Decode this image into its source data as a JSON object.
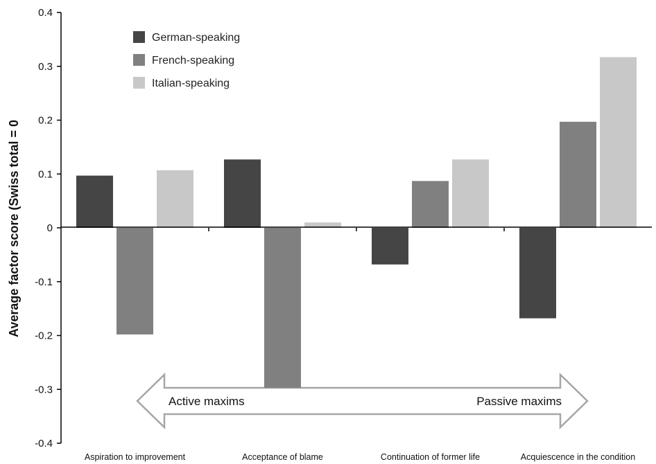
{
  "chart_data": {
    "type": "bar",
    "ylabel": "Average factor score (Swiss total = 0",
    "ylim": [
      -0.4,
      0.4
    ],
    "yticks": [
      {
        "value": -0.4,
        "label": "-0.4"
      },
      {
        "value": -0.3,
        "label": "-0.3"
      },
      {
        "value": -0.2,
        "label": "-0.2"
      },
      {
        "value": -0.1,
        "label": "-0.1"
      },
      {
        "value": 0,
        "label": "0"
      },
      {
        "value": 0.1,
        "label": "0.1"
      },
      {
        "value": 0.2,
        "label": "0.2"
      },
      {
        "value": 0.3,
        "label": "0.3"
      },
      {
        "value": 0.4,
        "label": "0.4"
      }
    ],
    "categories": [
      "Aspiration to improvement",
      "Acceptance of blame",
      "Continuation of former life",
      "Acquiescence in the condition"
    ],
    "series": [
      {
        "name": "German-speaking",
        "color": "#454545",
        "values": [
          0.097,
          0.127,
          -0.068,
          -0.168
        ]
      },
      {
        "name": "French-speaking",
        "color": "#808080",
        "values": [
          -0.198,
          -0.297,
          0.087,
          0.197
        ]
      },
      {
        "name": "Italian-speaking",
        "color": "#c8c8c8",
        "values": [
          0.107,
          0.01,
          0.127,
          0.317
        ]
      }
    ],
    "legend_position": "top-left",
    "grid": false,
    "annotation": {
      "type": "double-arrow",
      "left_label": "Active maxims",
      "right_label": "Passive maxims"
    }
  }
}
